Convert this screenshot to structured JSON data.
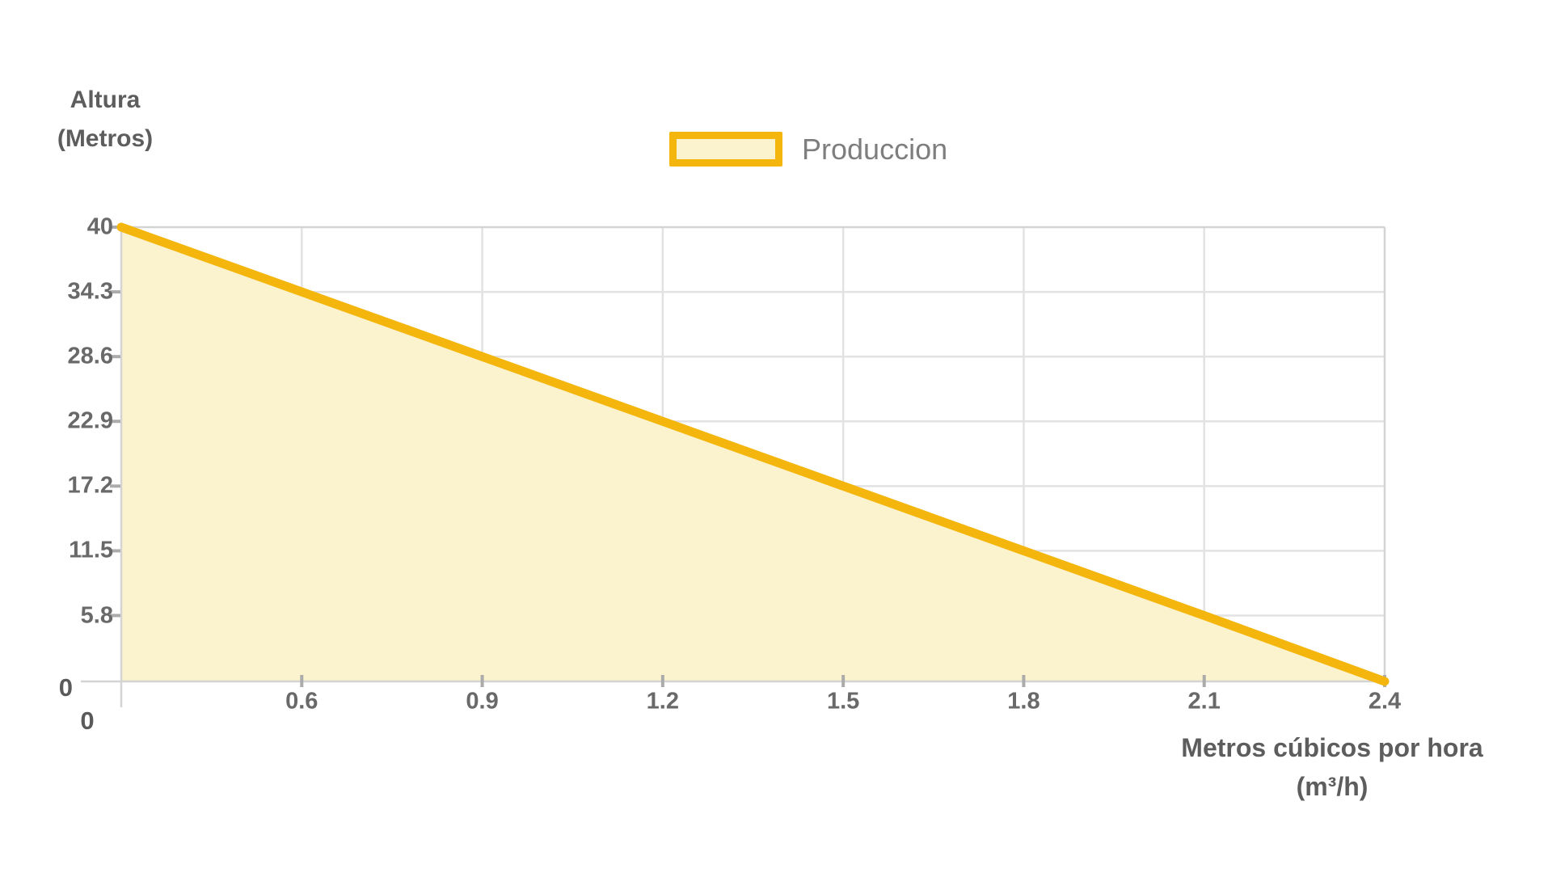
{
  "axes": {
    "y_title_line1": "Altura",
    "y_title_line2": "(Metros)",
    "x_title_line1": "Metros cúbicos por hora",
    "x_title_line2": "(m³/h)",
    "y_origin_label": "0",
    "x_origin_label": "0"
  },
  "legend": {
    "label": "Produccion"
  },
  "chart_data": {
    "type": "area",
    "title": "",
    "categories": [
      "0",
      "0.6",
      "0.9",
      "1.2",
      "1.5",
      "1.8",
      "2.1",
      "2.4"
    ],
    "series": [
      {
        "name": "Produccion",
        "values": [
          40,
          34.3,
          28.6,
          22.9,
          17.2,
          11.5,
          5.8,
          0
        ]
      }
    ],
    "y_ticks": [
      "0",
      "5.8",
      "11.5",
      "17.2",
      "22.9",
      "28.6",
      "34.3",
      "40"
    ],
    "ylim": [
      0,
      40
    ],
    "xlabel": "Metros cúbicos por hora (m³/h)",
    "ylabel": "Altura (Metros)",
    "grid": true,
    "legend_position": "top-center",
    "colors": {
      "line": "#F4B50C",
      "fill": "#FBF3CD",
      "grid": "#E2E2E2",
      "frame": "#D4D4D4",
      "tick": "#ABABAB",
      "tick_label": "#696969",
      "title_text": "#5D5D5D",
      "legend_text": "#7E7E7E"
    }
  }
}
